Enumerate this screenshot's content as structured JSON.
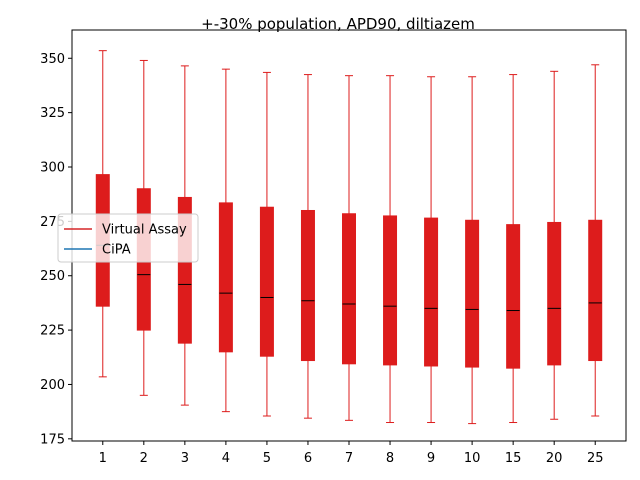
{
  "chart_data": {
    "type": "box",
    "title": "+-30% population, APD90, diltiazem",
    "xlabel": "",
    "ylabel": "",
    "categories": [
      "1",
      "2",
      "3",
      "4",
      "5",
      "6",
      "7",
      "8",
      "9",
      "10",
      "15",
      "20",
      "25"
    ],
    "ylim": [
      174,
      363
    ],
    "yticks": [
      175,
      200,
      225,
      250,
      275,
      300,
      325,
      350
    ],
    "grid": false,
    "legend": {
      "position": "center-left",
      "entries": [
        {
          "label": "Virtual Assay",
          "color": "#d62728"
        },
        {
          "label": "CiPA",
          "color": "#1f77b4"
        }
      ]
    },
    "series": [
      {
        "name": "Virtual Assay",
        "color": "#dd1c1c",
        "boxes": [
          {
            "whisker_low": 203.5,
            "q1": 236,
            "median": 264,
            "q3": 296.5,
            "whisker_high": 353.5
          },
          {
            "whisker_low": 195,
            "q1": 225,
            "median": 250.5,
            "q3": 290,
            "whisker_high": 349
          },
          {
            "whisker_low": 190.5,
            "q1": 219,
            "median": 246,
            "q3": 286,
            "whisker_high": 346.5
          },
          {
            "whisker_low": 187.5,
            "q1": 215,
            "median": 242,
            "q3": 283.5,
            "whisker_high": 345
          },
          {
            "whisker_low": 185.5,
            "q1": 213,
            "median": 240,
            "q3": 281.5,
            "whisker_high": 343.5
          },
          {
            "whisker_low": 184.5,
            "q1": 211,
            "median": 238.5,
            "q3": 280,
            "whisker_high": 342.5
          },
          {
            "whisker_low": 183.5,
            "q1": 209.5,
            "median": 237,
            "q3": 278.5,
            "whisker_high": 342
          },
          {
            "whisker_low": 182.5,
            "q1": 209,
            "median": 236,
            "q3": 277.5,
            "whisker_high": 342
          },
          {
            "whisker_low": 182.5,
            "q1": 208.5,
            "median": 235,
            "q3": 276.5,
            "whisker_high": 341.5
          },
          {
            "whisker_low": 182,
            "q1": 208,
            "median": 234.5,
            "q3": 275.5,
            "whisker_high": 341.5
          },
          {
            "whisker_low": 182.5,
            "q1": 207.5,
            "median": 234,
            "q3": 273.5,
            "whisker_high": 342.5
          },
          {
            "whisker_low": 184,
            "q1": 209,
            "median": 235,
            "q3": 274.5,
            "whisker_high": 344
          },
          {
            "whisker_low": 185.5,
            "q1": 211,
            "median": 237.5,
            "q3": 275.5,
            "whisker_high": 347
          }
        ]
      }
    ]
  }
}
